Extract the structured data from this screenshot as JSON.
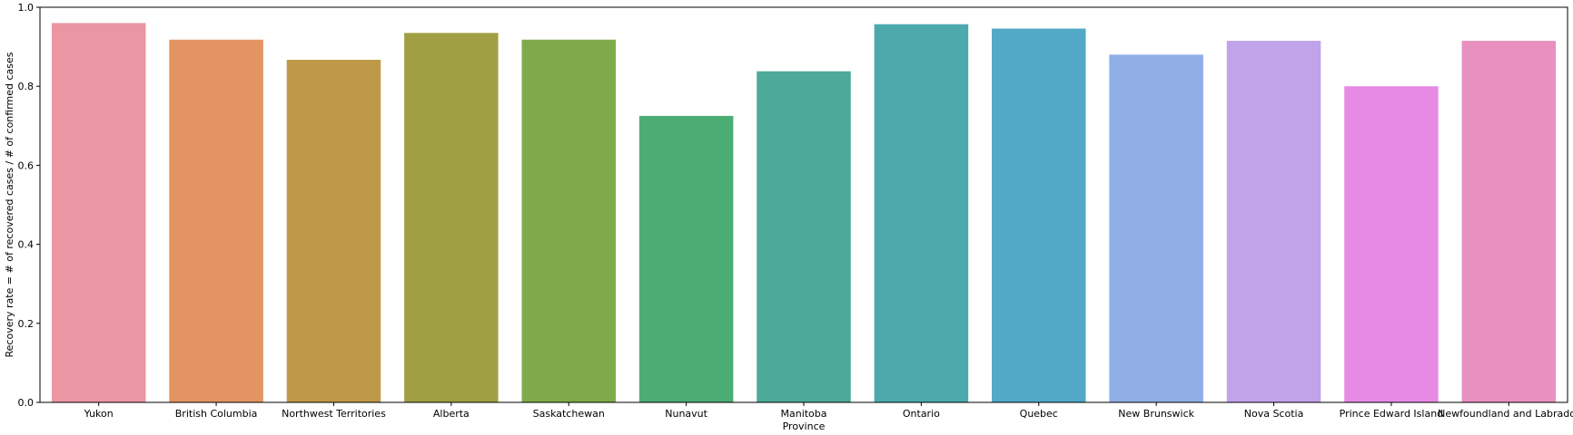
{
  "chart_data": {
    "type": "bar",
    "xlabel": "Province",
    "ylabel": "Recovery rate = # of recovered cases / # of confirmed cases",
    "ylim": [
      0,
      1.0
    ],
    "yticks": [
      "0.0",
      "0.2",
      "0.4",
      "0.6",
      "0.8",
      "1.0"
    ],
    "ytick_values": [
      0,
      0.2,
      0.4,
      0.6,
      0.8,
      1.0
    ],
    "grid": false,
    "categories": [
      "Yukon",
      "British Columbia",
      "Northwest Territories",
      "Alberta",
      "Saskatchewan",
      "Nunavut",
      "Manitoba",
      "Ontario",
      "Quebec",
      "New Brunswick",
      "Nova Scotia",
      "Prince Edward Island",
      "Newfoundland and Labrador"
    ],
    "values": [
      0.96,
      0.918,
      0.867,
      0.935,
      0.918,
      0.725,
      0.838,
      0.957,
      0.946,
      0.88,
      0.915,
      0.8,
      0.915
    ],
    "colors": [
      "#ea96a3",
      "#e49462",
      "#be9a48",
      "#a09f43",
      "#7faa4a",
      "#4bad74",
      "#4daa98",
      "#4caaad",
      "#52a9c7",
      "#8faee6",
      "#c1a3ea",
      "#e78ae6",
      "#e891c0"
    ]
  }
}
